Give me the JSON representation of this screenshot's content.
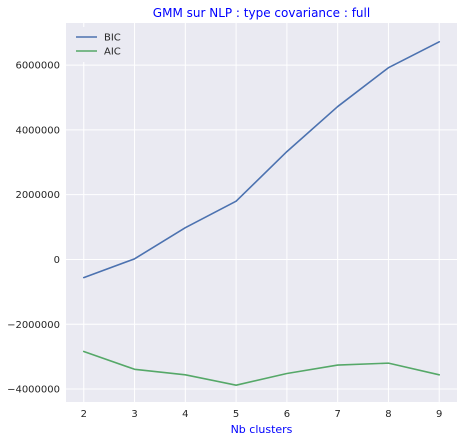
{
  "chart_data": {
    "type": "line",
    "title": "GMM sur NLP : type covariance : full",
    "xlabel": "Nb clusters",
    "ylabel": "",
    "x": [
      2,
      3,
      4,
      5,
      6,
      7,
      8,
      9
    ],
    "xlim": [
      1.65,
      9.35
    ],
    "ylim": [
      -4400000,
      7300000
    ],
    "xticks": [
      2,
      3,
      4,
      5,
      6,
      7,
      8,
      9
    ],
    "yticks": [
      -4000000,
      -2000000,
      0,
      2000000,
      4000000,
      6000000
    ],
    "ytick_labels": [
      "−4000000",
      "−2000000",
      "0",
      "2000000",
      "4000000",
      "6000000"
    ],
    "grid": true,
    "legend_position": "top-left",
    "series": [
      {
        "name": "BIC",
        "color": "#4c72b0",
        "values": [
          -560000,
          20000,
          980000,
          1800000,
          3330000,
          4720000,
          5920000,
          6720000
        ]
      },
      {
        "name": "AIC",
        "color": "#55a868",
        "values": [
          -2840000,
          -3390000,
          -3560000,
          -3880000,
          -3520000,
          -3260000,
          -3200000,
          -3560000
        ]
      }
    ],
    "colors": {
      "plot_background": "#eaeaf2",
      "grid": "#ffffff",
      "title": "#0000ff",
      "xlabel": "#0000ff"
    }
  }
}
